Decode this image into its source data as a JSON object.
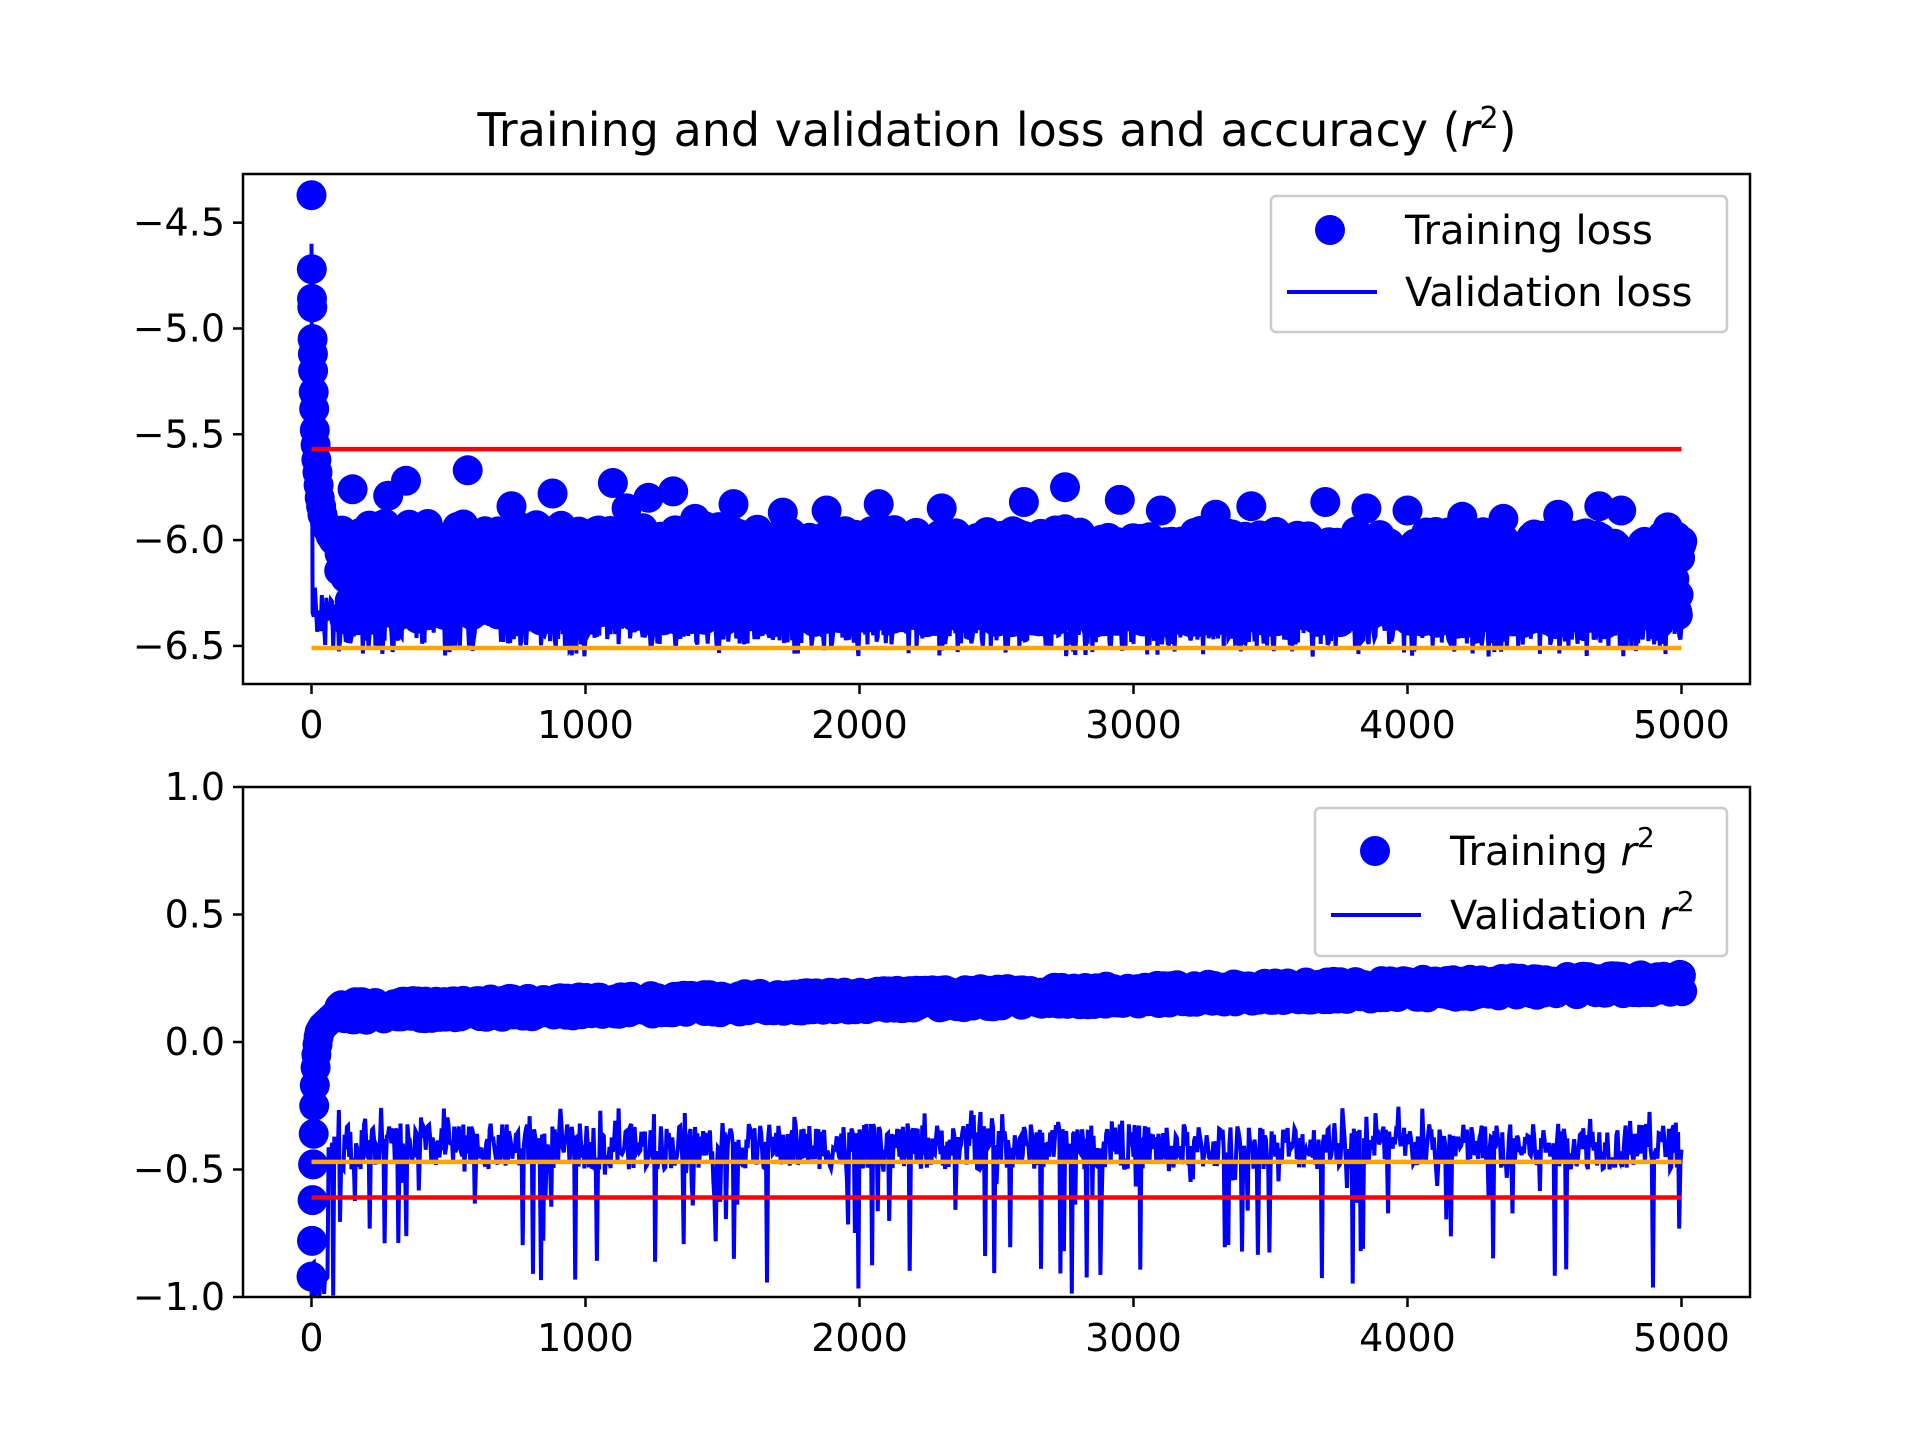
{
  "chart_data": {
    "title_prefix": "Training and validation loss and accuracy (",
    "title_var": "r",
    "title_sup": "2",
    "title_suffix": ")",
    "colors": {
      "training": "#0000ff",
      "validation": "#0000ff",
      "red_ref": "#ff0000",
      "orange_ref": "#ffa500"
    },
    "panels": [
      {
        "id": "loss",
        "type": "scatter",
        "xlim": [
          -250,
          5250
        ],
        "ylim": [
          -6.68,
          -4.27
        ],
        "xticks": [
          0,
          1000,
          2000,
          3000,
          4000,
          5000
        ],
        "xtick_labels": [
          "0",
          "1000",
          "2000",
          "3000",
          "4000",
          "5000"
        ],
        "yticks": [
          -4.5,
          -5.0,
          -5.5,
          -6.0,
          -6.5
        ],
        "ytick_labels": [
          "−4.5",
          "−5.0",
          "−5.5",
          "−6.0",
          "−6.5"
        ],
        "legend_position": "upper-right",
        "legend": [
          {
            "marker": "dot",
            "text": "Training loss"
          },
          {
            "marker": "line",
            "text": "Validation loss"
          }
        ],
        "series": [
          {
            "name": "Training loss",
            "kind": "points",
            "early_x": [
              0,
              1,
              2,
              3,
              4,
              5,
              6,
              8,
              10,
              12,
              15,
              18,
              22,
              26,
              30,
              35,
              40,
              50,
              60,
              70,
              80
            ],
            "early_y": [
              -4.37,
              -4.72,
              -4.86,
              -4.9,
              -5.05,
              -5.12,
              -5.2,
              -5.3,
              -5.38,
              -5.48,
              -5.55,
              -5.62,
              -5.68,
              -5.74,
              -5.8,
              -5.84,
              -5.88,
              -5.92,
              -5.95,
              -5.98,
              -6.0
            ],
            "late_x": [
              150,
              280,
              345,
              570,
              730,
              880,
              1100,
              1150,
              1230,
              1320,
              1400,
              1540,
              1720,
              1880,
              2070,
              2300,
              2600,
              2750,
              2950,
              3100,
              3300,
              3430,
              3700,
              3850,
              4000,
              4200,
              4350,
              4550,
              4700,
              4780,
              4950,
              5000
            ],
            "late_y": [
              -5.76,
              -5.79,
              -5.72,
              -5.67,
              -5.84,
              -5.78,
              -5.73,
              -5.85,
              -5.8,
              -5.77,
              -5.9,
              -5.83,
              -5.87,
              -5.86,
              -5.83,
              -5.85,
              -5.82,
              -5.75,
              -5.81,
              -5.86,
              -5.88,
              -5.84,
              -5.82,
              -5.85,
              -5.86,
              -5.89,
              -5.9,
              -5.88,
              -5.84,
              -5.86,
              -5.94,
              -6.02
            ],
            "band": {
              "x_start": 100,
              "x_end": 5000,
              "upper_start": -5.92,
              "upper_end": -5.97,
              "lower_start": -6.38,
              "lower_end": -6.4
            }
          },
          {
            "name": "Validation loss",
            "kind": "noisy-line",
            "start": {
              "x": 0,
              "y": -4.6
            },
            "x_end": 5000,
            "typical_range": [
              -6.5,
              -6.25
            ],
            "max_deviation": -6.05,
            "min_deviation": -6.55
          },
          {
            "kind": "hline",
            "role": "red",
            "y": -5.57,
            "x": [
              0,
              5000
            ]
          },
          {
            "kind": "hline",
            "role": "orange",
            "y": -6.51,
            "x": [
              0,
              5000
            ]
          }
        ]
      },
      {
        "id": "r2",
        "type": "scatter",
        "xlim": [
          -250,
          5250
        ],
        "ylim": [
          -1.0,
          1.0
        ],
        "xticks": [
          0,
          1000,
          2000,
          3000,
          4000,
          5000
        ],
        "xtick_labels": [
          "0",
          "1000",
          "2000",
          "3000",
          "4000",
          "5000"
        ],
        "yticks": [
          1.0,
          0.5,
          0.0,
          -0.5,
          -1.0
        ],
        "ytick_labels": [
          "1.0",
          "0.5",
          "0.0",
          "−0.5",
          "−1.0"
        ],
        "legend_position": "upper-right",
        "legend": [
          {
            "marker": "dot",
            "text": "Training ",
            "var": "r",
            "sup": "2"
          },
          {
            "marker": "line",
            "text": "Validation ",
            "var": "r",
            "sup": "2"
          }
        ],
        "series": [
          {
            "name": "Training r2",
            "kind": "points",
            "early_x": [
              0,
              2,
              4,
              6,
              8,
              10,
              12,
              15,
              18,
              22,
              26,
              30,
              35,
              40,
              50,
              60,
              70,
              80,
              90,
              100
            ],
            "early_y": [
              -0.92,
              -0.78,
              -0.62,
              -0.48,
              -0.36,
              -0.25,
              -0.17,
              -0.1,
              -0.05,
              -0.01,
              0.02,
              0.04,
              0.05,
              0.06,
              0.07,
              0.08,
              0.09,
              0.1,
              0.11,
              0.12
            ],
            "band": {
              "x_start": 100,
              "x_end": 5000,
              "center_start": 0.12,
              "center_end": 0.23,
              "half_width": 0.035
            }
          },
          {
            "name": "Validation r2",
            "kind": "noisy-line",
            "start": {
              "x": 0,
              "y": -1.0
            },
            "x_end": 5000,
            "typical_range": [
              -0.5,
              -0.32
            ],
            "max_deviation": -0.25,
            "min_deviation": -1.0
          },
          {
            "kind": "hline",
            "role": "orange",
            "y": -0.47,
            "x": [
              0,
              5000
            ]
          },
          {
            "kind": "hline",
            "role": "red",
            "y": -0.61,
            "x": [
              0,
              5000
            ]
          }
        ]
      }
    ]
  }
}
